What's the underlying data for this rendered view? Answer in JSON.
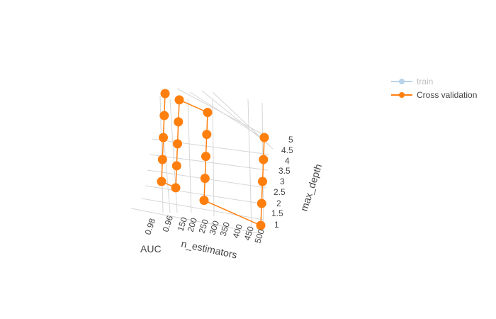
{
  "chart_data": {
    "type": "scatter3d",
    "legend_position": "top-right",
    "axes": {
      "x": {
        "label": "AUC",
        "ticks": [
          "0.98",
          "0.96"
        ]
      },
      "y": {
        "label": "n_estimators",
        "ticks": [
          "150",
          "200",
          "250",
          "300",
          "350",
          "400",
          "450",
          "500"
        ]
      },
      "z": {
        "label": "max_depth",
        "ticks": [
          "1",
          "1.5",
          "2",
          "2.5",
          "3",
          "3.5",
          "4",
          "4.5",
          "5"
        ]
      }
    },
    "series": [
      {
        "name": "train",
        "color": "#7fb0d8",
        "mode": "lines+markers",
        "visible": "legendonly"
      },
      {
        "name": "Cross validation",
        "color": "#ff7f0e",
        "mode": "lines+markers",
        "points": [
          {
            "n_estimators": 150,
            "max_depth": 5
          },
          {
            "n_estimators": 150,
            "max_depth": 4
          },
          {
            "n_estimators": 150,
            "max_depth": 3
          },
          {
            "n_estimators": 150,
            "max_depth": 2
          },
          {
            "n_estimators": 150,
            "max_depth": 1
          },
          {
            "n_estimators": 200,
            "max_depth": 1
          },
          {
            "n_estimators": 200,
            "max_depth": 2
          },
          {
            "n_estimators": 200,
            "max_depth": 3
          },
          {
            "n_estimators": 200,
            "max_depth": 4
          },
          {
            "n_estimators": 200,
            "max_depth": 5
          },
          {
            "n_estimators": 300,
            "max_depth": 5
          },
          {
            "n_estimators": 300,
            "max_depth": 4
          },
          {
            "n_estimators": 300,
            "max_depth": 3
          },
          {
            "n_estimators": 300,
            "max_depth": 2
          },
          {
            "n_estimators": 300,
            "max_depth": 1
          },
          {
            "n_estimators": 500,
            "max_depth": 1
          },
          {
            "n_estimators": 500,
            "max_depth": 2
          },
          {
            "n_estimators": 500,
            "max_depth": 3
          },
          {
            "n_estimators": 500,
            "max_depth": 4
          },
          {
            "n_estimators": 500,
            "max_depth": 5
          }
        ]
      }
    ]
  }
}
